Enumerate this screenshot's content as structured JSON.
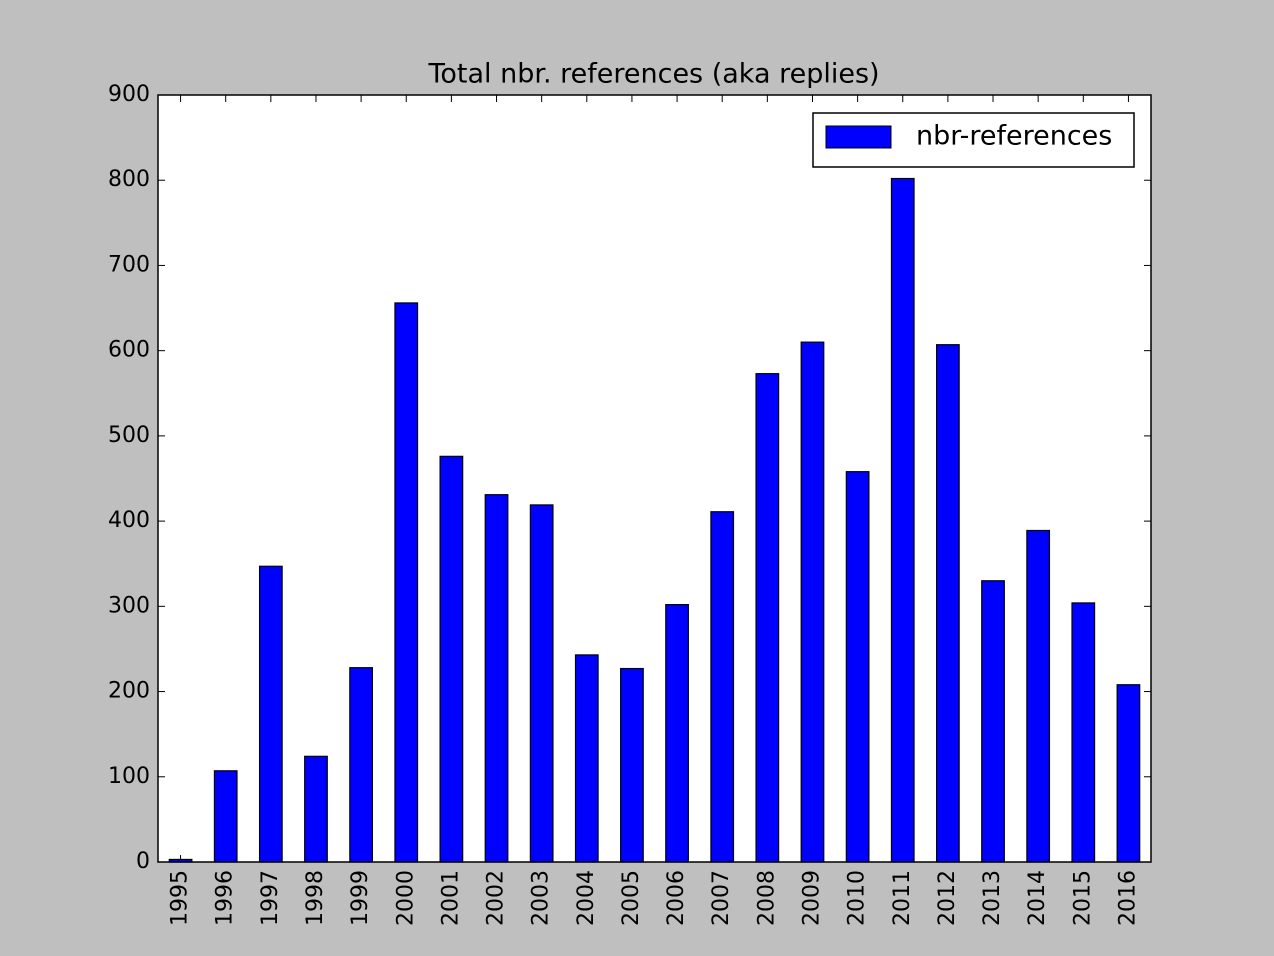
{
  "chart_data": {
    "type": "bar",
    "title": "Total nbr. references (aka replies)",
    "categories": [
      "1995",
      "1996",
      "1997",
      "1998",
      "1999",
      "2000",
      "2001",
      "2002",
      "2003",
      "2004",
      "2005",
      "2006",
      "2007",
      "2008",
      "2009",
      "2010",
      "2011",
      "2012",
      "2013",
      "2014",
      "2015",
      "2016"
    ],
    "series": [
      {
        "name": "nbr-references",
        "color": "#0000ff",
        "values": [
          3,
          107,
          347,
          124,
          228,
          656,
          476,
          431,
          419,
          243,
          227,
          302,
          411,
          573,
          610,
          458,
          802,
          607,
          330,
          389,
          304,
          208
        ]
      }
    ],
    "ylim": [
      0,
      900
    ],
    "yticks": [
      0,
      100,
      200,
      300,
      400,
      500,
      600,
      700,
      800,
      900
    ],
    "legend": "upper right",
    "grid": false
  }
}
